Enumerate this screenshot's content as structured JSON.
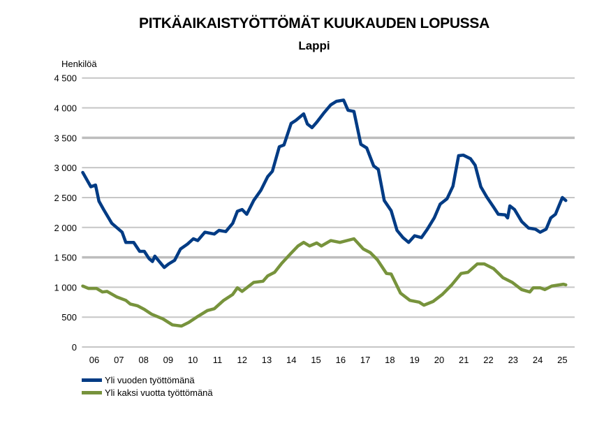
{
  "chart_data": {
    "type": "line",
    "title": "PITKÄAIKAISTYÖTTÖMÄT KUUKAUDEN LOPUSSA",
    "subtitle": "Lappi",
    "ylabel": "Henkilöä",
    "xlabel": "",
    "ylim": [
      0,
      4500
    ],
    "xlim": [
      2006,
      2026
    ],
    "yticks": [
      0,
      500,
      1000,
      1500,
      2000,
      2500,
      3000,
      3500,
      4000,
      4500
    ],
    "ytick_labels": [
      "0",
      "500",
      "1 000",
      "1 500",
      "2 000",
      "2 500",
      "3 000",
      "3 500",
      "4 000",
      "4 500"
    ],
    "xtick_labels": [
      "06",
      "07",
      "08",
      "09",
      "10",
      "11",
      "12",
      "13",
      "14",
      "15",
      "16",
      "17",
      "18",
      "19",
      "20",
      "21",
      "22",
      "23",
      "24",
      "25"
    ],
    "grid": true,
    "legend_position": "bottom-left",
    "series": [
      {
        "name": "Yli vuoden työttömänä",
        "color": "#003B84",
        "points": [
          [
            2006.03,
            2920
          ],
          [
            2006.36,
            2680
          ],
          [
            2006.55,
            2710
          ],
          [
            2006.69,
            2440
          ],
          [
            2006.88,
            2300
          ],
          [
            2007.21,
            2070
          ],
          [
            2007.63,
            1920
          ],
          [
            2007.78,
            1750
          ],
          [
            2008.1,
            1750
          ],
          [
            2008.34,
            1600
          ],
          [
            2008.53,
            1600
          ],
          [
            2008.72,
            1480
          ],
          [
            2008.86,
            1430
          ],
          [
            2008.96,
            1520
          ],
          [
            2009.34,
            1330
          ],
          [
            2009.52,
            1390
          ],
          [
            2009.76,
            1450
          ],
          [
            2010.0,
            1640
          ],
          [
            2010.28,
            1720
          ],
          [
            2010.52,
            1810
          ],
          [
            2010.7,
            1780
          ],
          [
            2010.99,
            1920
          ],
          [
            2011.37,
            1890
          ],
          [
            2011.56,
            1950
          ],
          [
            2011.84,
            1930
          ],
          [
            2012.12,
            2070
          ],
          [
            2012.31,
            2270
          ],
          [
            2012.5,
            2300
          ],
          [
            2012.69,
            2220
          ],
          [
            2012.97,
            2450
          ],
          [
            2013.26,
            2620
          ],
          [
            2013.54,
            2850
          ],
          [
            2013.73,
            2940
          ],
          [
            2014.01,
            3350
          ],
          [
            2014.2,
            3380
          ],
          [
            2014.49,
            3740
          ],
          [
            2014.68,
            3790
          ],
          [
            2015.0,
            3900
          ],
          [
            2015.15,
            3730
          ],
          [
            2015.34,
            3670
          ],
          [
            2015.53,
            3760
          ],
          [
            2015.81,
            3910
          ],
          [
            2016.1,
            4050
          ],
          [
            2016.33,
            4110
          ],
          [
            2016.62,
            4130
          ],
          [
            2016.8,
            3960
          ],
          [
            2017.04,
            3940
          ],
          [
            2017.32,
            3390
          ],
          [
            2017.56,
            3330
          ],
          [
            2017.84,
            3030
          ],
          [
            2018.03,
            2970
          ],
          [
            2018.27,
            2450
          ],
          [
            2018.55,
            2280
          ],
          [
            2018.79,
            1950
          ],
          [
            2019.03,
            1830
          ],
          [
            2019.26,
            1750
          ],
          [
            2019.5,
            1860
          ],
          [
            2019.78,
            1830
          ],
          [
            2020.02,
            1970
          ],
          [
            2020.3,
            2160
          ],
          [
            2020.54,
            2390
          ],
          [
            2020.82,
            2480
          ],
          [
            2021.06,
            2690
          ],
          [
            2021.29,
            3200
          ],
          [
            2021.48,
            3210
          ],
          [
            2021.77,
            3150
          ],
          [
            2021.96,
            3040
          ],
          [
            2022.19,
            2680
          ],
          [
            2022.43,
            2510
          ],
          [
            2022.71,
            2340
          ],
          [
            2022.9,
            2220
          ],
          [
            2023.18,
            2210
          ],
          [
            2023.28,
            2160
          ],
          [
            2023.37,
            2360
          ],
          [
            2023.56,
            2300
          ],
          [
            2023.85,
            2100
          ],
          [
            2024.13,
            1990
          ],
          [
            2024.41,
            1970
          ],
          [
            2024.6,
            1920
          ],
          [
            2024.84,
            1970
          ],
          [
            2025.03,
            2160
          ],
          [
            2025.22,
            2220
          ],
          [
            2025.5,
            2500
          ],
          [
            2025.64,
            2450
          ]
        ]
      },
      {
        "name": "Yli kaksi vuotta työttömänä",
        "color": "#77933C",
        "points": [
          [
            2006.03,
            1020
          ],
          [
            2006.26,
            980
          ],
          [
            2006.59,
            980
          ],
          [
            2006.83,
            920
          ],
          [
            2007.02,
            930
          ],
          [
            2007.4,
            840
          ],
          [
            2007.78,
            780
          ],
          [
            2007.96,
            720
          ],
          [
            2008.25,
            690
          ],
          [
            2008.53,
            630
          ],
          [
            2008.82,
            550
          ],
          [
            2009.29,
            470
          ],
          [
            2009.67,
            370
          ],
          [
            2010.04,
            350
          ],
          [
            2010.33,
            410
          ],
          [
            2010.7,
            510
          ],
          [
            2011.09,
            610
          ],
          [
            2011.37,
            640
          ],
          [
            2011.75,
            780
          ],
          [
            2012.12,
            880
          ],
          [
            2012.31,
            990
          ],
          [
            2012.5,
            930
          ],
          [
            2012.97,
            1080
          ],
          [
            2013.35,
            1100
          ],
          [
            2013.54,
            1190
          ],
          [
            2013.82,
            1250
          ],
          [
            2014.11,
            1400
          ],
          [
            2014.49,
            1570
          ],
          [
            2014.77,
            1690
          ],
          [
            2015.0,
            1750
          ],
          [
            2015.24,
            1690
          ],
          [
            2015.53,
            1740
          ],
          [
            2015.72,
            1690
          ],
          [
            2016.1,
            1780
          ],
          [
            2016.47,
            1750
          ],
          [
            2017.04,
            1810
          ],
          [
            2017.42,
            1640
          ],
          [
            2017.7,
            1580
          ],
          [
            2017.99,
            1460
          ],
          [
            2018.36,
            1230
          ],
          [
            2018.55,
            1220
          ],
          [
            2018.93,
            900
          ],
          [
            2019.31,
            780
          ],
          [
            2019.69,
            750
          ],
          [
            2019.88,
            700
          ],
          [
            2020.25,
            760
          ],
          [
            2020.63,
            880
          ],
          [
            2021.01,
            1040
          ],
          [
            2021.39,
            1230
          ],
          [
            2021.67,
            1250
          ],
          [
            2022.05,
            1390
          ],
          [
            2022.33,
            1390
          ],
          [
            2022.71,
            1310
          ],
          [
            2023.09,
            1160
          ],
          [
            2023.47,
            1080
          ],
          [
            2023.85,
            960
          ],
          [
            2024.18,
            920
          ],
          [
            2024.32,
            990
          ],
          [
            2024.6,
            990
          ],
          [
            2024.79,
            960
          ],
          [
            2025.07,
            1020
          ],
          [
            2025.54,
            1050
          ],
          [
            2025.64,
            1040
          ]
        ]
      }
    ]
  }
}
